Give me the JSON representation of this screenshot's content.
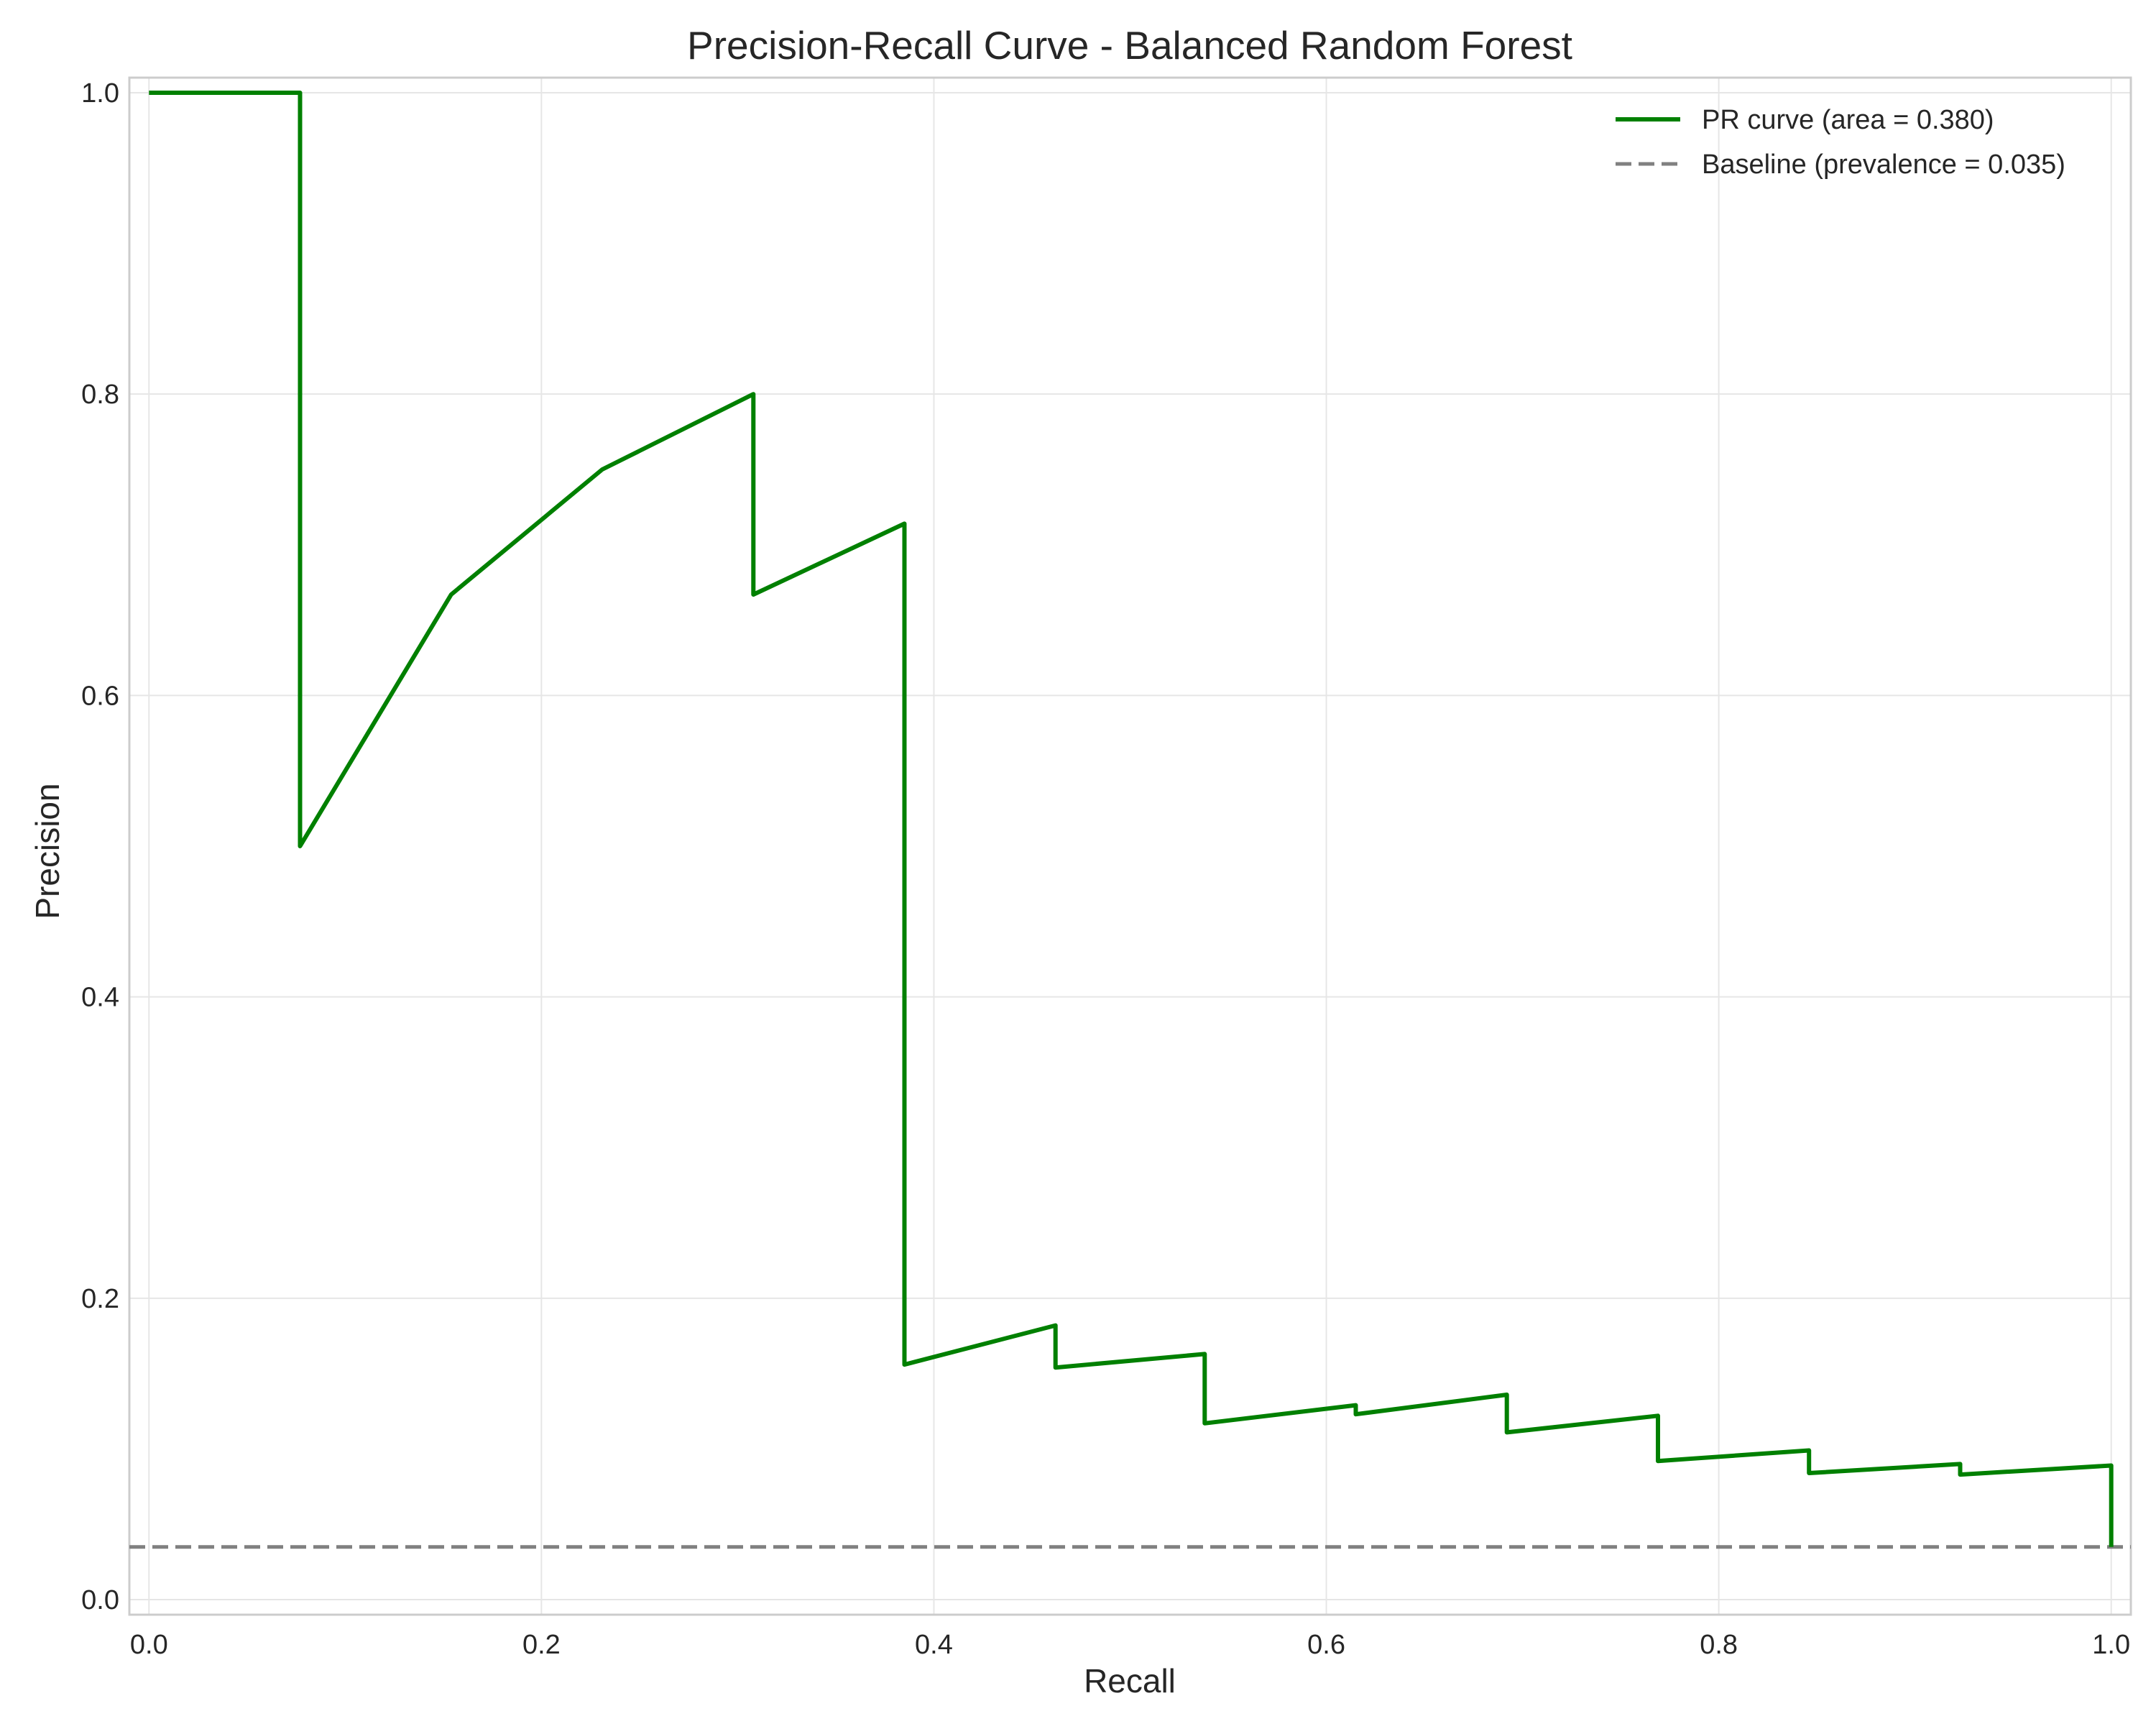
{
  "chart_data": {
    "type": "line",
    "title": "Precision-Recall Curve - Balanced Random Forest",
    "xlabel": "Recall",
    "ylabel": "Precision",
    "xlim": [
      -0.01,
      1.01
    ],
    "ylim": [
      -0.01,
      1.01
    ],
    "x_ticks": [
      "0.0",
      "0.2",
      "0.4",
      "0.6",
      "0.8",
      "1.0"
    ],
    "y_ticks": [
      "0.0",
      "0.2",
      "0.4",
      "0.6",
      "0.8",
      "1.0"
    ],
    "grid": true,
    "legend_position": "top-right",
    "series": [
      {
        "name": "PR curve (area = 0.380)",
        "style": "solid",
        "color": "#008000",
        "x": [
          0.0,
          0.077,
          0.077,
          0.154,
          0.231,
          0.308,
          0.308,
          0.385,
          0.385,
          0.462,
          0.462,
          0.538,
          0.538,
          0.615,
          0.615,
          0.692,
          0.692,
          0.769,
          0.769,
          0.846,
          0.846,
          0.923,
          0.923,
          1.0,
          1.0
        ],
        "y": [
          1.0,
          1.0,
          0.5,
          0.667,
          0.75,
          0.8,
          0.667,
          0.714,
          0.156,
          0.182,
          0.154,
          0.163,
          0.117,
          0.129,
          0.123,
          0.136,
          0.111,
          0.122,
          0.092,
          0.099,
          0.084,
          0.09,
          0.083,
          0.089,
          0.035
        ]
      },
      {
        "name": "Baseline (prevalence = 0.035)",
        "style": "dashed",
        "color": "#808080",
        "x": [
          -0.01,
          1.01
        ],
        "y": [
          0.035,
          0.035
        ]
      }
    ]
  }
}
